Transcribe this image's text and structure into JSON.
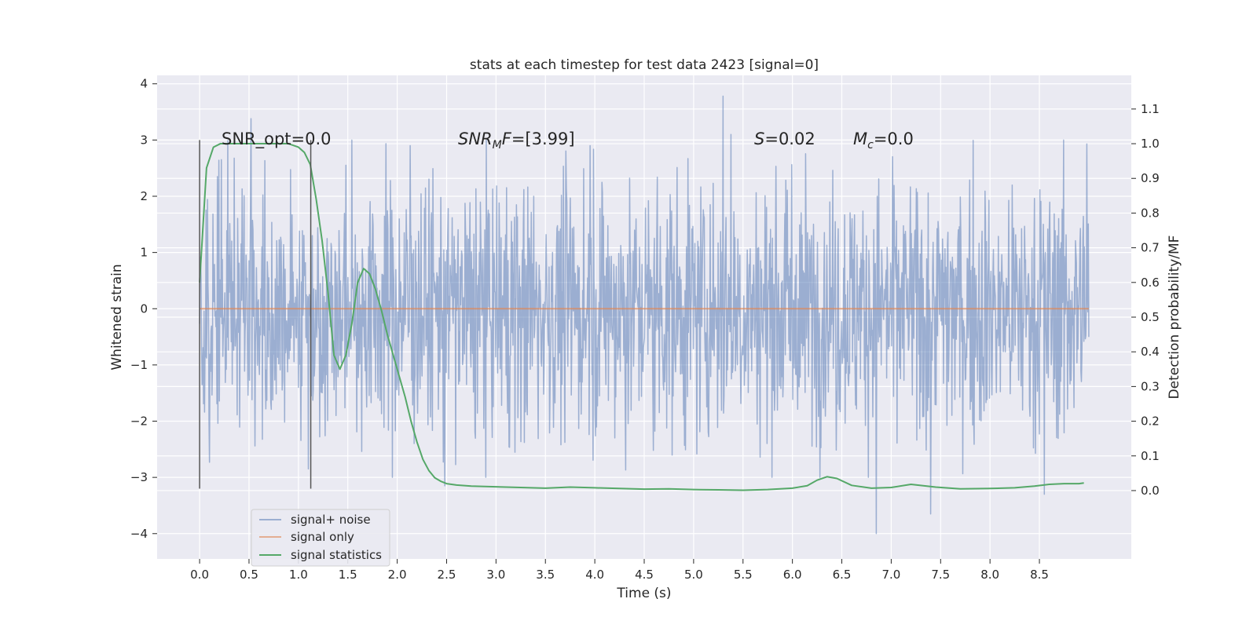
{
  "chart_data": {
    "type": "line",
    "title": "stats at each timestep for test data 2423 [signal=0]",
    "xlabel": "Time (s)",
    "ylabel": "Whitened strain",
    "ylabel_right": "Detection probability/MF",
    "xlim": [
      -0.43,
      9.43
    ],
    "ylim": [
      -4.45,
      4.15
    ],
    "ylim_right": [
      -0.197,
      1.197
    ],
    "x_ticks": [
      0.0,
      0.5,
      1.0,
      1.5,
      2.0,
      2.5,
      3.0,
      3.5,
      4.0,
      4.5,
      5.0,
      5.5,
      6.0,
      6.5,
      7.0,
      7.5,
      8.0,
      8.5
    ],
    "x_tick_labels": [
      "0.0",
      "0.5",
      "1.0",
      "1.5",
      "2.0",
      "2.5",
      "3.0",
      "3.5",
      "4.0",
      "4.5",
      "5.0",
      "5.5",
      "6.0",
      "6.5",
      "7.0",
      "7.5",
      "8.0",
      "8.5"
    ],
    "y_ticks": [
      -4,
      -3,
      -2,
      -1,
      0,
      1,
      2,
      3,
      4
    ],
    "y_tick_labels": [
      "−4",
      "−3",
      "−2",
      "−1",
      "0",
      "1",
      "2",
      "3",
      "4"
    ],
    "y_right_ticks": [
      0.0,
      0.1,
      0.2,
      0.3,
      0.4,
      0.5,
      0.6,
      0.7,
      0.8,
      0.9,
      1.0,
      1.1
    ],
    "y_right_tick_labels": [
      "0.0",
      "0.1",
      "0.2",
      "0.3",
      "0.4",
      "0.5",
      "0.6",
      "0.7",
      "0.8",
      "0.9",
      "1.0",
      "1.1"
    ],
    "grid": true,
    "legend_position": "lower-left",
    "annotations": {
      "snr_opt": "SNR_opt=0.0",
      "snr_mf_label": "SNR",
      "snr_mf_sub": "M",
      "snr_mf_var": "F",
      "snr_mf_value": "=[3.99]",
      "s_var": "S",
      "s_value": "=0.02",
      "mc_var": "M",
      "mc_sub": "c",
      "mc_value": "=0.0"
    },
    "vertical_markers": [
      {
        "x": 0.0,
        "y_range": [
          -3.2,
          3.0
        ]
      },
      {
        "x": 1.125,
        "y_range": [
          -3.2,
          3.0
        ]
      }
    ],
    "series": [
      {
        "name": "signal+ noise",
        "color": "#4c72b0",
        "opacity": 0.5,
        "axis": "left",
        "x_range": [
          0.0,
          9.0
        ],
        "n_samples": 1800,
        "typical_amplitude": 1.2,
        "extremes": [
          {
            "x": 0.52,
            "y": 3.38
          },
          {
            "x": 1.1,
            "y": -2.85
          },
          {
            "x": 2.48,
            "y": -3.15
          },
          {
            "x": 5.3,
            "y": 3.78
          },
          {
            "x": 5.38,
            "y": 3.1
          },
          {
            "x": 6.85,
            "y": -4.0
          },
          {
            "x": 7.4,
            "y": 3.82
          },
          {
            "x": 7.4,
            "y": -3.65
          },
          {
            "x": 8.55,
            "y": -3.3
          },
          {
            "x": 8.98,
            "y": 2.93
          },
          {
            "x": 3.95,
            "y": 2.9
          },
          {
            "x": 2.13,
            "y": 2.9
          }
        ]
      },
      {
        "name": "signal only",
        "color": "#dd8452",
        "axis": "left",
        "x": [
          0.0,
          9.0
        ],
        "y": [
          0.0,
          0.0
        ]
      },
      {
        "name": "signal statistics",
        "color": "#55a868",
        "axis": "right",
        "x": [
          0.0,
          0.07,
          0.14,
          0.21,
          0.3,
          0.45,
          0.6,
          0.75,
          0.9,
          1.0,
          1.06,
          1.12,
          1.18,
          1.24,
          1.3,
          1.36,
          1.42,
          1.48,
          1.54,
          1.6,
          1.66,
          1.72,
          1.78,
          1.84,
          1.9,
          1.96,
          2.02,
          2.08,
          2.14,
          2.2,
          2.26,
          2.32,
          2.38,
          2.44,
          2.5,
          2.6,
          2.75,
          3.0,
          3.25,
          3.5,
          3.75,
          4.0,
          4.25,
          4.5,
          4.75,
          5.0,
          5.25,
          5.5,
          5.75,
          6.0,
          6.15,
          6.25,
          6.35,
          6.45,
          6.6,
          6.8,
          7.0,
          7.2,
          7.45,
          7.7,
          8.0,
          8.25,
          8.45,
          8.6,
          8.75,
          8.9,
          8.95
        ],
        "y": [
          0.6,
          0.93,
          0.99,
          1.0,
          1.0,
          1.0,
          1.0,
          1.0,
          1.0,
          0.99,
          0.975,
          0.94,
          0.84,
          0.72,
          0.57,
          0.39,
          0.35,
          0.39,
          0.48,
          0.6,
          0.64,
          0.625,
          0.58,
          0.52,
          0.45,
          0.39,
          0.33,
          0.27,
          0.2,
          0.14,
          0.09,
          0.058,
          0.037,
          0.027,
          0.02,
          0.016,
          0.013,
          0.011,
          0.009,
          0.007,
          0.01,
          0.008,
          0.006,
          0.004,
          0.005,
          0.003,
          0.002,
          0.001,
          0.003,
          0.007,
          0.014,
          0.03,
          0.04,
          0.035,
          0.015,
          0.007,
          0.009,
          0.018,
          0.01,
          0.005,
          0.006,
          0.008,
          0.013,
          0.018,
          0.02,
          0.02,
          0.022
        ]
      }
    ]
  }
}
